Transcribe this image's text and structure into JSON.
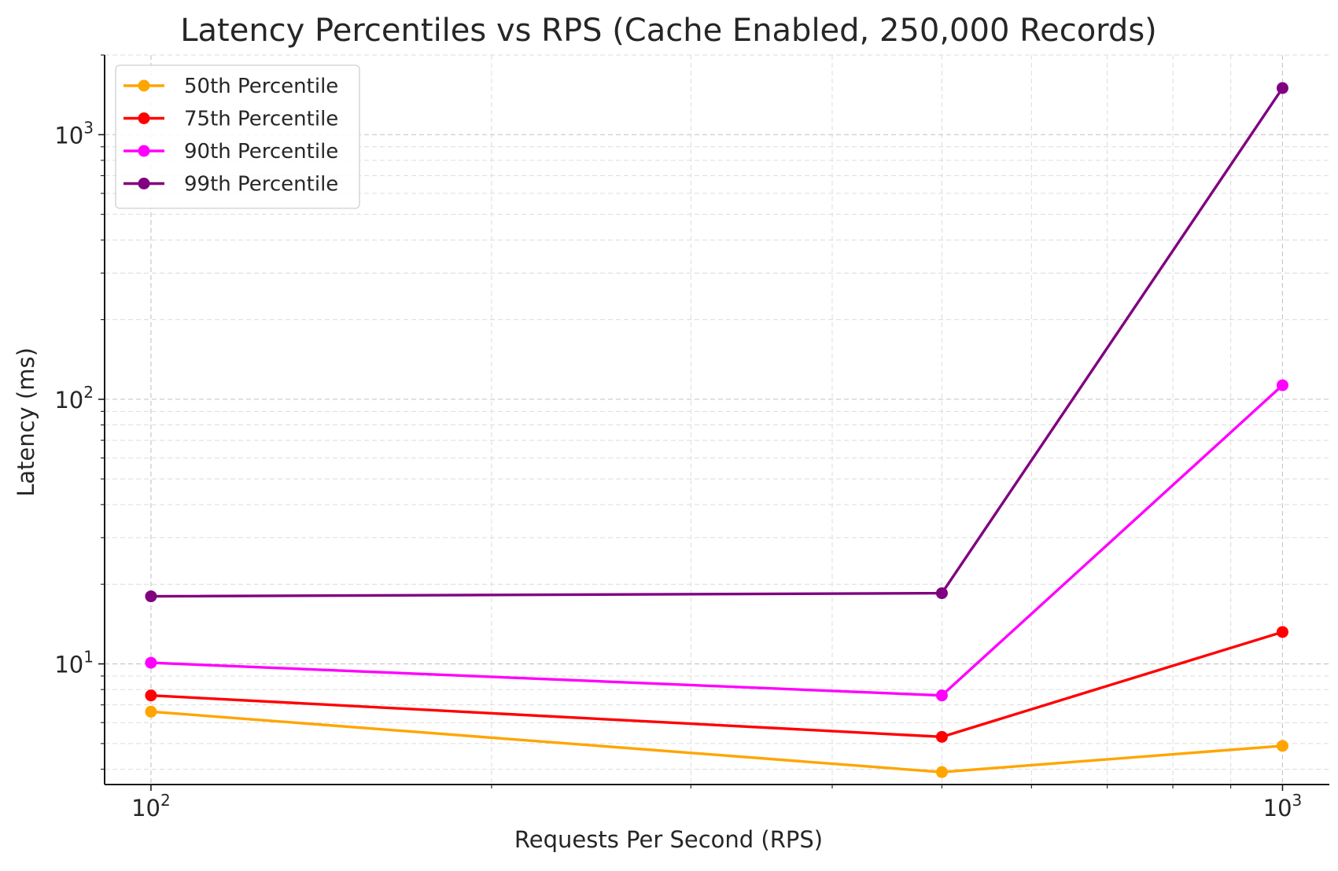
{
  "chart_data": {
    "type": "line",
    "title": "Latency Percentiles vs RPS (Cache Enabled, 250,000 Records)",
    "xlabel": "Requests Per Second (RPS)",
    "ylabel": "Latency (ms)",
    "xscale": "log",
    "yscale": "log",
    "xlim": [
      91,
      1100
    ],
    "ylim": [
      3.5,
      2000
    ],
    "xticks": [
      {
        "value": 100,
        "base": "10",
        "exp": "2"
      },
      {
        "value": 1000,
        "base": "10",
        "exp": "3"
      }
    ],
    "yticks": [
      {
        "value": 10,
        "base": "10",
        "exp": "1"
      },
      {
        "value": 100,
        "base": "10",
        "exp": "2"
      },
      {
        "value": 1000,
        "base": "10",
        "exp": "3"
      }
    ],
    "grid": true,
    "legend_position": "upper-left",
    "x": [
      100,
      500,
      1000
    ],
    "series": [
      {
        "name": "50th Percentile",
        "color": "#ffa500",
        "values": [
          6.6,
          3.9,
          4.9
        ]
      },
      {
        "name": "75th Percentile",
        "color": "#ff0000",
        "values": [
          7.6,
          5.3,
          13.2
        ]
      },
      {
        "name": "90th Percentile",
        "color": "#ff00ff",
        "values": [
          10.1,
          7.6,
          113
        ]
      },
      {
        "name": "99th Percentile",
        "color": "#800080",
        "values": [
          18,
          18.5,
          1500
        ]
      }
    ]
  }
}
